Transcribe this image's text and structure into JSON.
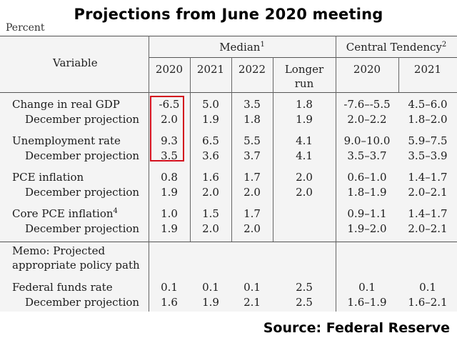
{
  "title": "Projections from June 2020 meeting",
  "unit_label": "Percent",
  "source": "Source: Federal Reserve",
  "highlight_color": "#d3101e",
  "header": {
    "variable": "Variable",
    "median": "Median",
    "median_sup": "1",
    "central_tendency": "Central Tendency",
    "central_sup": "2",
    "columns": [
      "2020",
      "2021",
      "2022",
      "Longer",
      "run",
      "2020",
      "2021"
    ]
  },
  "rows": [
    {
      "label": "Change in real GDP",
      "sup": "",
      "values": [
        "-6.5",
        "5.0",
        "3.5",
        "1.8",
        "-7.6–-5.5",
        "4.5–6.0"
      ]
    },
    {
      "label": "December projection",
      "sup": "",
      "values": [
        "2.0",
        "1.9",
        "1.8",
        "1.9",
        "2.0–2.2",
        "1.8–2.0"
      ]
    },
    {
      "label": "Unemployment rate",
      "sup": "",
      "values": [
        "9.3",
        "6.5",
        "5.5",
        "4.1",
        "9.0–10.0",
        "5.9–7.5"
      ]
    },
    {
      "label": "December projection",
      "sup": "",
      "values": [
        "3.5",
        "3.6",
        "3.7",
        "4.1",
        "3.5–3.7",
        "3.5–3.9"
      ]
    },
    {
      "label": "PCE inflation",
      "sup": "",
      "values": [
        "0.8",
        "1.6",
        "1.7",
        "2.0",
        "0.6–1.0",
        "1.4–1.7"
      ]
    },
    {
      "label": "December projection",
      "sup": "",
      "values": [
        "1.9",
        "2.0",
        "2.0",
        "2.0",
        "1.8–1.9",
        "2.0–2.1"
      ]
    },
    {
      "label": "Core PCE inflation",
      "sup": "4",
      "values": [
        "1.0",
        "1.5",
        "1.7",
        "",
        "0.9–1.1",
        "1.4–1.7"
      ]
    },
    {
      "label": "December projection",
      "sup": "",
      "values": [
        "1.9",
        "2.0",
        "2.0",
        "",
        "1.9–2.0",
        "2.0–2.1"
      ]
    }
  ],
  "memo": {
    "line1": "Memo: Projected",
    "line2": "appropriate policy path"
  },
  "policy_rows": [
    {
      "label": "Federal funds rate",
      "values": [
        "0.1",
        "0.1",
        "0.1",
        "2.5",
        "0.1",
        "0.1"
      ]
    },
    {
      "label": "December projection",
      "values": [
        "1.6",
        "1.9",
        "2.1",
        "2.5",
        "1.6–1.9",
        "1.6–2.1"
      ]
    }
  ]
}
